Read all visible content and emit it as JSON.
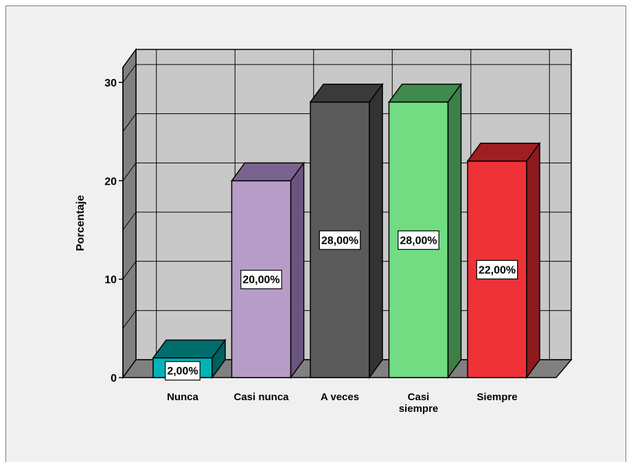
{
  "chart_data": {
    "type": "bar",
    "ylabel": "Porcentaje",
    "xlabel": "",
    "ylim": [
      0,
      30
    ],
    "yticks": [
      0,
      10,
      20,
      30
    ],
    "grid": true,
    "style": "3d",
    "categories": [
      [
        "Nunca"
      ],
      [
        "Casi nunca"
      ],
      [
        "A veces"
      ],
      [
        "Casi",
        "siempre"
      ],
      [
        "Siempre"
      ]
    ],
    "values": [
      2,
      20,
      28,
      28,
      22
    ],
    "data_labels": [
      "2,00%",
      "20,00%",
      "28,00%",
      "28,00%",
      "22,00%"
    ],
    "colors": [
      {
        "front": "#00b3b8",
        "top": "#006d6d",
        "side": "#005f5f"
      },
      {
        "front": "#b89cc8",
        "top": "#7a6390",
        "side": "#6b5580"
      },
      {
        "front": "#5a5a5a",
        "top": "#3a3a3a",
        "side": "#333333"
      },
      {
        "front": "#72dc82",
        "top": "#3f8a4c",
        "side": "#3c7f47"
      },
      {
        "front": "#ee3238",
        "top": "#9e1e22",
        "side": "#8c1a1e"
      }
    ]
  }
}
